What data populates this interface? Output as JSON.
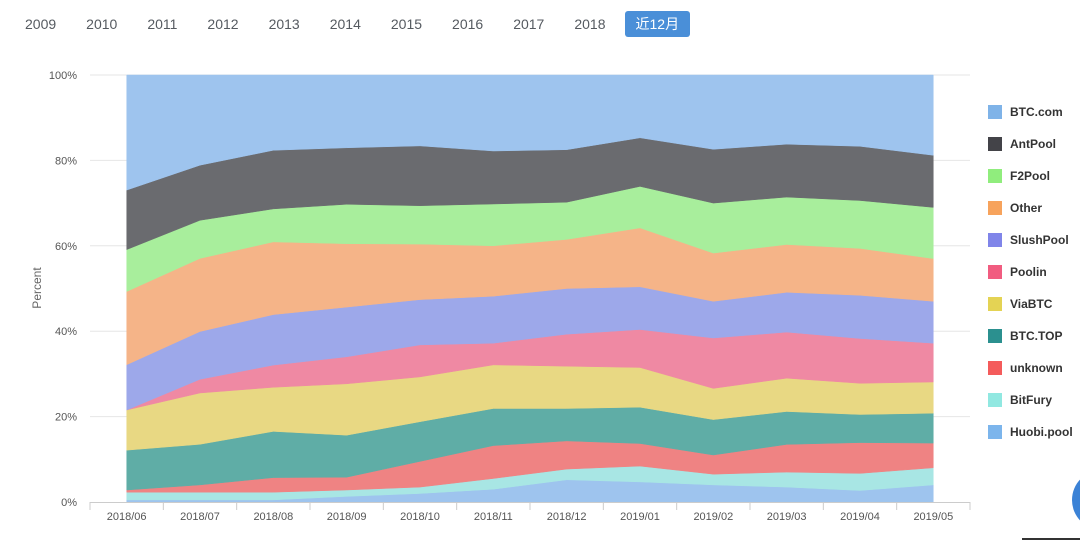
{
  "year_tabs": [
    {
      "label": "2009",
      "active": false
    },
    {
      "label": "2010",
      "active": false
    },
    {
      "label": "2011",
      "active": false
    },
    {
      "label": "2012",
      "active": false
    },
    {
      "label": "2013",
      "active": false
    },
    {
      "label": "2014",
      "active": false
    },
    {
      "label": "2015",
      "active": false
    },
    {
      "label": "2016",
      "active": false
    },
    {
      "label": "2017",
      "active": false
    },
    {
      "label": "2018",
      "active": false
    },
    {
      "label": "近12月",
      "active": true
    }
  ],
  "chart_data": {
    "type": "area",
    "stacking": "percent",
    "ylabel": "Percent",
    "xlabel": "",
    "ylim": [
      0,
      100
    ],
    "yticks": [
      "0%",
      "20%",
      "40%",
      "60%",
      "80%",
      "100%"
    ],
    "grid": true,
    "legend_position": "right",
    "categories": [
      "2018/06",
      "2018/07",
      "2018/08",
      "2018/09",
      "2018/10",
      "2018/11",
      "2018/12",
      "2019/01",
      "2019/02",
      "2019/03",
      "2019/04",
      "2019/05"
    ],
    "series": [
      {
        "name": "Huobi.pool",
        "color": "#9ec4ee",
        "values": [
          0.5,
          0.5,
          0.5,
          1.3,
          2.0,
          3.0,
          5.2,
          4.7,
          4.0,
          3.5,
          2.7,
          4.0
        ]
      },
      {
        "name": "BitFury",
        "color": "#a8e6e4",
        "values": [
          1.8,
          1.8,
          1.8,
          1.5,
          1.5,
          2.5,
          2.5,
          3.7,
          2.5,
          3.5,
          4.0,
          4.0
        ]
      },
      {
        "name": "unknown",
        "color": "#ef8383",
        "values": [
          0.5,
          1.7,
          3.4,
          3.0,
          6.0,
          7.7,
          6.6,
          5.3,
          4.5,
          6.5,
          7.2,
          5.8
        ]
      },
      {
        "name": "BTC.TOP",
        "color": "#5fada6",
        "values": [
          9.3,
          9.5,
          10.8,
          9.8,
          9.3,
          8.7,
          7.6,
          8.5,
          8.3,
          7.7,
          6.6,
          7.0
        ]
      },
      {
        "name": "ViaBTC",
        "color": "#e8d883",
        "values": [
          9.4,
          12.0,
          10.3,
          12.0,
          10.5,
          10.2,
          9.9,
          9.3,
          7.3,
          7.8,
          7.3,
          7.3
        ]
      },
      {
        "name": "Poolin",
        "color": "#ef89a3",
        "values": [
          0.0,
          3.2,
          5.2,
          6.3,
          7.5,
          5.1,
          7.5,
          8.9,
          11.8,
          10.8,
          10.5,
          9.1
        ]
      },
      {
        "name": "SlushPool",
        "color": "#9da8ea",
        "values": [
          10.6,
          11.2,
          11.8,
          11.6,
          10.6,
          11.0,
          10.7,
          10.0,
          8.6,
          9.3,
          10.1,
          9.8
        ]
      },
      {
        "name": "Other",
        "color": "#f5b488",
        "values": [
          17.1,
          17.1,
          17.0,
          14.8,
          13.0,
          11.8,
          11.5,
          13.8,
          11.3,
          11.2,
          11.0,
          10.0
        ]
      },
      {
        "name": "F2Pool",
        "color": "#a8ee9c",
        "values": [
          9.8,
          8.9,
          7.7,
          9.2,
          9.0,
          9.8,
          8.7,
          9.7,
          11.7,
          11.1,
          11.2,
          12.0
        ]
      },
      {
        "name": "AntPool",
        "color": "#6a6b6f",
        "values": [
          13.9,
          12.9,
          13.7,
          13.2,
          14.0,
          12.4,
          12.3,
          11.4,
          12.6,
          12.4,
          12.7,
          12.2
        ]
      },
      {
        "name": "BTC.com",
        "color": "#9ec4ee",
        "values": [
          26.9,
          21.1,
          17.6,
          17.0,
          16.6,
          17.8,
          17.5,
          14.7,
          17.4,
          16.2,
          16.7,
          18.8
        ]
      }
    ]
  },
  "legend": [
    {
      "label": "BTC.com",
      "color": "#7fb3e8"
    },
    {
      "label": "AntPool",
      "color": "#434348"
    },
    {
      "label": "F2Pool",
      "color": "#90ed7d"
    },
    {
      "label": "Other",
      "color": "#f7a35c"
    },
    {
      "label": "SlushPool",
      "color": "#8085e9"
    },
    {
      "label": "Poolin",
      "color": "#f15c80"
    },
    {
      "label": "ViaBTC",
      "color": "#e4d354"
    },
    {
      "label": "BTC.TOP",
      "color": "#2b908f"
    },
    {
      "label": "unknown",
      "color": "#f45b5b"
    },
    {
      "label": "BitFury",
      "color": "#91e8e1"
    },
    {
      "label": "Huobi.pool",
      "color": "#7cb5ec"
    }
  ]
}
